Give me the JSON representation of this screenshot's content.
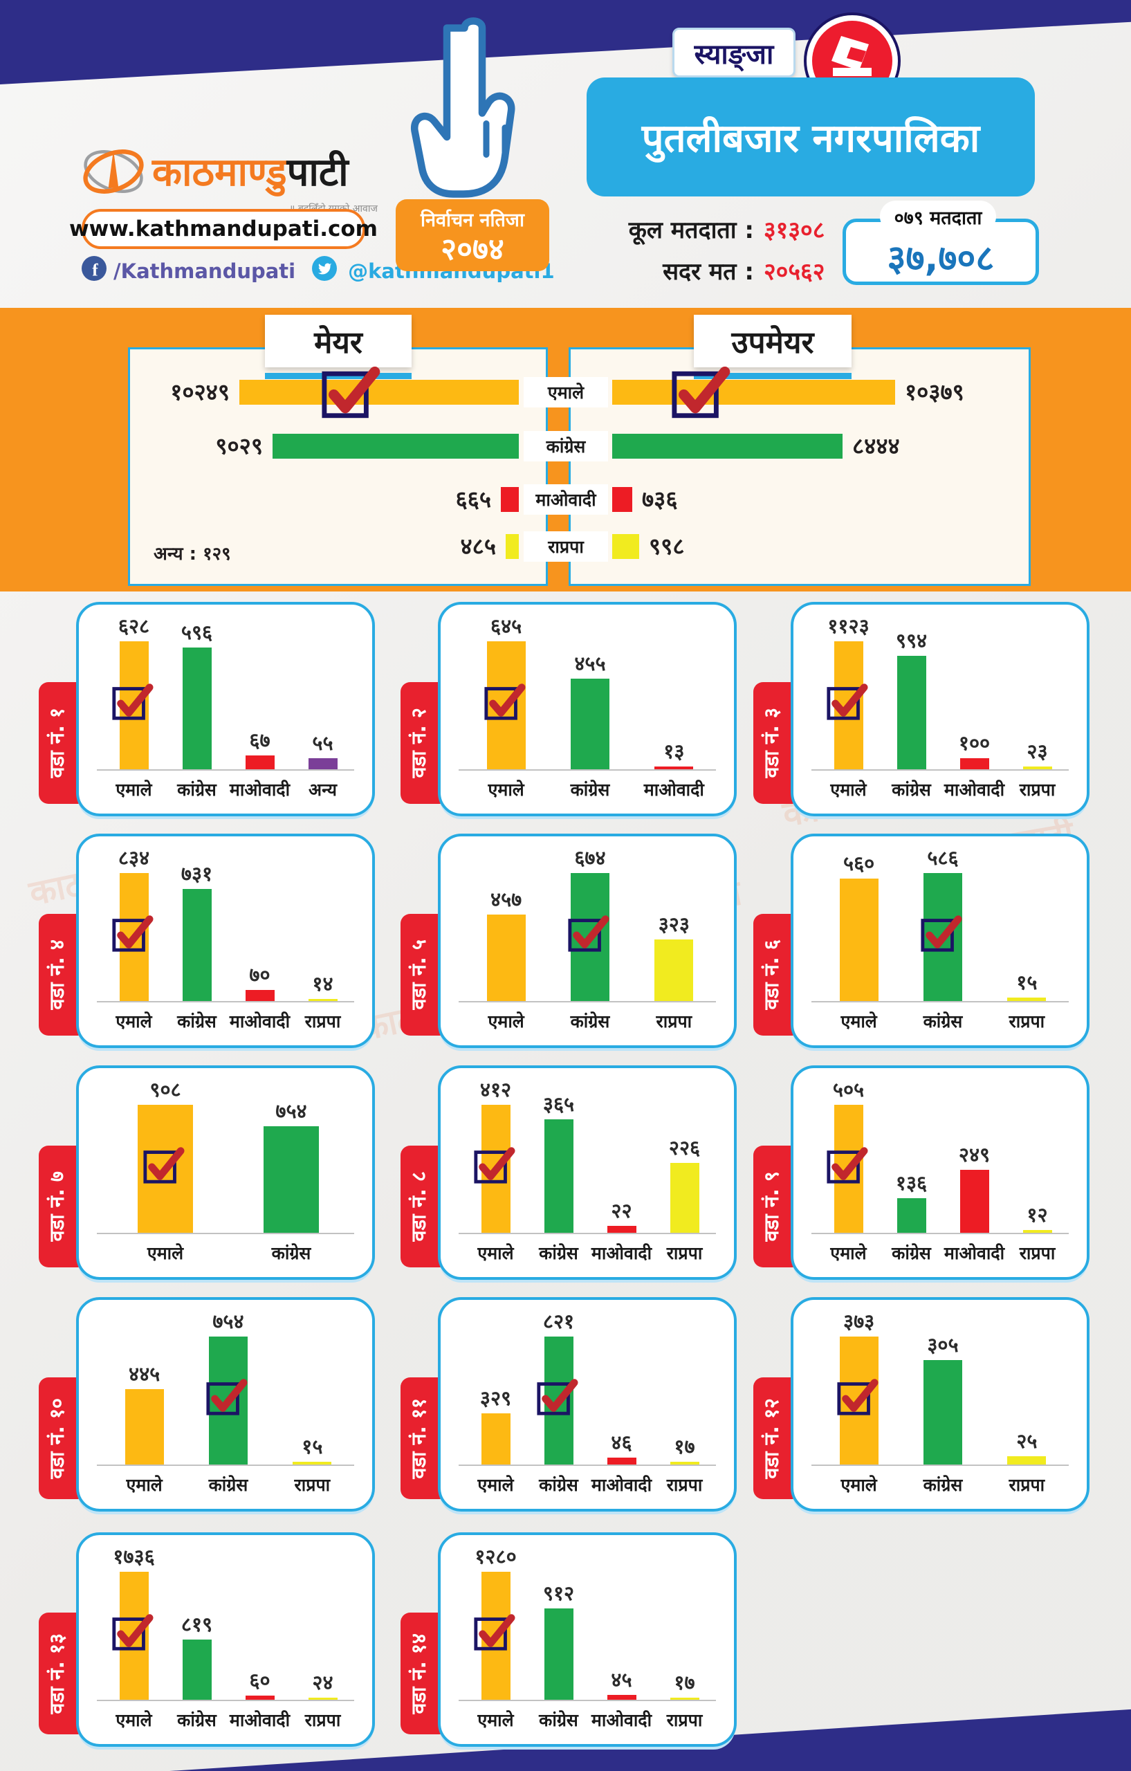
{
  "header": {
    "logo": {
      "brand_orange": "काठमाण्डु",
      "brand_black": "पाटी",
      "tagline": "॥ बदलिँदो युगको आवाज",
      "website": "www.kathmandupati.com",
      "facebook": "/Kathmandupati",
      "twitter": "@kathmandupati1"
    },
    "election_badge": {
      "line1": "निर्वाचन नतिजा",
      "line2": "२०७४"
    },
    "district": "स्याङ्जा",
    "municipality": "पुतलीबजार नगरपालिका",
    "stats": [
      {
        "label": "कूल मतदाता :",
        "value": "३१३०८"
      },
      {
        "label": "सदर मत :",
        "value": "२०५६२"
      }
    ],
    "voters_badge": {
      "label": "०७९ मतदाता",
      "value": "३७,७०८"
    }
  },
  "mayor_section": {
    "left_title": "मेयर",
    "right_title": "उपमेयर",
    "others_note": "अन्य : १२९"
  },
  "party_colors": {
    "एमाले": "#FDB913",
    "कांग्रेस": "#1FA94E",
    "माओवादी": "#ED1C24",
    "राप्रपा": "#F1EB1F",
    "अन्य": "#7B3F98"
  },
  "chart_data": [
    {
      "id": "mayor",
      "type": "bar",
      "orientation": "horizontal",
      "title": "मेयर",
      "categories": [
        "एमाले",
        "कांग्रेस",
        "माओवादी",
        "राप्रपा"
      ],
      "values": [
        10249,
        9029,
        665,
        485
      ],
      "value_labels": [
        "१०२४९",
        "९०२९",
        "६६५",
        "४८५"
      ],
      "winner_index": 0,
      "note": "अन्य : १२९",
      "xlim": [
        0,
        10400
      ],
      "legend_position": "center-column"
    },
    {
      "id": "deputy",
      "type": "bar",
      "orientation": "horizontal",
      "title": "उपमेयर",
      "categories": [
        "एमाले",
        "कांग्रेस",
        "माओवादी",
        "राप्रपा"
      ],
      "values": [
        10379,
        8444,
        736,
        998
      ],
      "value_labels": [
        "१०३७९",
        "८४४४",
        "७३६",
        "९९८"
      ],
      "winner_index": 0,
      "xlim": [
        0,
        10400
      ],
      "legend_position": "center-column"
    },
    {
      "id": "ward-1",
      "type": "bar",
      "title": "वडा नं. १",
      "categories": [
        "एमाले",
        "कांग्रेस",
        "माओवादी",
        "अन्य"
      ],
      "values": [
        628,
        596,
        67,
        55
      ],
      "value_labels": [
        "६२८",
        "५९६",
        "६७",
        "५५"
      ],
      "winner_index": 0
    },
    {
      "id": "ward-2",
      "type": "bar",
      "title": "वडा नं. २",
      "categories": [
        "एमाले",
        "कांग्रेस",
        "माओवादी"
      ],
      "values": [
        645,
        455,
        13
      ],
      "value_labels": [
        "६४५",
        "४५५",
        "१३"
      ],
      "winner_index": 0
    },
    {
      "id": "ward-3",
      "type": "bar",
      "title": "वडा नं. ३",
      "categories": [
        "एमाले",
        "कांग्रेस",
        "माओवादी",
        "राप्रपा"
      ],
      "values": [
        1123,
        994,
        100,
        23
      ],
      "value_labels": [
        "११२३",
        "९९४",
        "१००",
        "२३"
      ],
      "winner_index": 0
    },
    {
      "id": "ward-4",
      "type": "bar",
      "title": "वडा नं. ४",
      "categories": [
        "एमाले",
        "कांग्रेस",
        "माओवादी",
        "राप्रपा"
      ],
      "values": [
        834,
        731,
        70,
        14
      ],
      "value_labels": [
        "८३४",
        "७३१",
        "७०",
        "१४"
      ],
      "winner_index": 0
    },
    {
      "id": "ward-5",
      "type": "bar",
      "title": "वडा नं. ५",
      "categories": [
        "एमाले",
        "कांग्रेस",
        "राप्रपा"
      ],
      "values": [
        457,
        674,
        323
      ],
      "value_labels": [
        "४५७",
        "६७४",
        "३२३"
      ],
      "winner_index": 1
    },
    {
      "id": "ward-6",
      "type": "bar",
      "title": "वडा नं. ६",
      "categories": [
        "एमाले",
        "कांग्रेस",
        "राप्रपा"
      ],
      "values": [
        560,
        586,
        15
      ],
      "value_labels": [
        "५६०",
        "५८६",
        "१५"
      ],
      "winner_index": 1
    },
    {
      "id": "ward-7",
      "type": "bar",
      "title": "वडा नं. ७",
      "categories": [
        "एमाले",
        "कांग्रेस"
      ],
      "values": [
        908,
        754
      ],
      "value_labels": [
        "९०८",
        "७५४"
      ],
      "winner_index": 0
    },
    {
      "id": "ward-8",
      "type": "bar",
      "title": "वडा नं. ८",
      "categories": [
        "एमाले",
        "कांग्रेस",
        "माओवादी",
        "राप्रपा"
      ],
      "values": [
        412,
        365,
        22,
        226
      ],
      "value_labels": [
        "४१२",
        "३६५",
        "२२",
        "२२६"
      ],
      "winner_index": 0
    },
    {
      "id": "ward-9",
      "type": "bar",
      "title": "वडा नं. ९",
      "categories": [
        "एमाले",
        "कांग्रेस",
        "माओवादी",
        "राप्रपा"
      ],
      "values": [
        505,
        136,
        249,
        12
      ],
      "value_labels": [
        "५०५",
        "१३६",
        "२४९",
        "१२"
      ],
      "winner_index": 0
    },
    {
      "id": "ward-10",
      "type": "bar",
      "title": "वडा नं. १०",
      "categories": [
        "एमाले",
        "कांग्रेस",
        "राप्रपा"
      ],
      "values": [
        445,
        754,
        15
      ],
      "value_labels": [
        "४४५",
        "७५४",
        "१५"
      ],
      "winner_index": 1
    },
    {
      "id": "ward-11",
      "type": "bar",
      "title": "वडा नं. ११",
      "categories": [
        "एमाले",
        "कांग्रेस",
        "माओवादी",
        "राप्रपा"
      ],
      "values": [
        329,
        821,
        46,
        17
      ],
      "value_labels": [
        "३२९",
        "८२१",
        "४६",
        "१७"
      ],
      "winner_index": 1
    },
    {
      "id": "ward-12",
      "type": "bar",
      "title": "वडा नं. १२",
      "categories": [
        "एमाले",
        "कांग्रेस",
        "राप्रपा"
      ],
      "values": [
        373,
        305,
        25
      ],
      "value_labels": [
        "३७३",
        "३०५",
        "२५"
      ],
      "winner_index": 0
    },
    {
      "id": "ward-13",
      "type": "bar",
      "title": "वडा नं. १३",
      "categories": [
        "एमाले",
        "कांग्रेस",
        "माओवादी",
        "राप्रपा"
      ],
      "values": [
        1736,
        819,
        60,
        24
      ],
      "value_labels": [
        "१७३६",
        "८१९",
        "६०",
        "२४"
      ],
      "winner_index": 0
    },
    {
      "id": "ward-14",
      "type": "bar",
      "title": "वडा नं. १४",
      "categories": [
        "एमाले",
        "कांग्रेस",
        "माओवादी",
        "राप्रपा"
      ],
      "values": [
        1280,
        912,
        45,
        17
      ],
      "value_labels": [
        "१२८०",
        "९१२",
        "४५",
        "१७"
      ],
      "winner_index": 0
    }
  ]
}
